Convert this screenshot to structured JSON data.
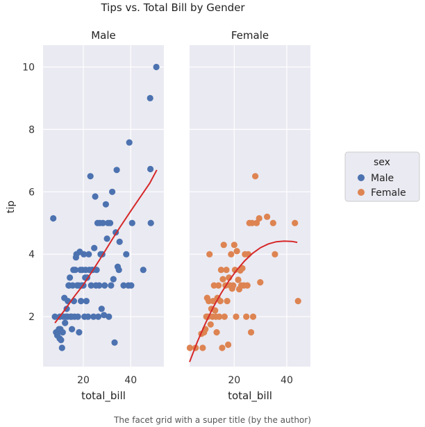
{
  "chart_data": {
    "type": "scatter",
    "title": "Tips vs. Total Bill by Gender",
    "ylabel": "tip",
    "ylim": [
      0.4,
      10.7
    ],
    "yticks": [
      2,
      4,
      6,
      8,
      10
    ],
    "grid": true,
    "legend": {
      "title": "sex",
      "placement": "right",
      "entries": [
        {
          "name": "Male",
          "color": "#4c72b0"
        },
        {
          "name": "Female",
          "color": "#dd8452"
        }
      ]
    },
    "trend_color": "#d62728",
    "facets": [
      {
        "title": "Male",
        "xlabel": "total_bill",
        "xlim": [
          3,
          54
        ],
        "xticks": [
          20,
          40
        ],
        "color": "#4c72b0",
        "points": [
          [
            7.3,
            5.15
          ],
          [
            8.0,
            2.0
          ],
          [
            8.5,
            1.5
          ],
          [
            9.0,
            1.4
          ],
          [
            9.3,
            1.5
          ],
          [
            9.7,
            1.6
          ],
          [
            10.0,
            1.3
          ],
          [
            10.1,
            2.0
          ],
          [
            10.3,
            1.6
          ],
          [
            10.6,
            1.25
          ],
          [
            11.0,
            1.0
          ],
          [
            11.3,
            1.5
          ],
          [
            11.6,
            2.0
          ],
          [
            12.0,
            2.6
          ],
          [
            12.3,
            1.8
          ],
          [
            12.7,
            2.0
          ],
          [
            13.0,
            2.25
          ],
          [
            13.3,
            2.0
          ],
          [
            13.5,
            2.5
          ],
          [
            13.8,
            3.0
          ],
          [
            14.0,
            3.0
          ],
          [
            14.3,
            3.25
          ],
          [
            14.6,
            2.0
          ],
          [
            15.0,
            2.0
          ],
          [
            15.2,
            1.6
          ],
          [
            15.5,
            3.0
          ],
          [
            15.8,
            3.5
          ],
          [
            16.0,
            2.5
          ],
          [
            16.3,
            2.0
          ],
          [
            16.6,
            3.5
          ],
          [
            16.9,
            3.9
          ],
          [
            17.1,
            4.0
          ],
          [
            17.4,
            3.0
          ],
          [
            17.7,
            2.0
          ],
          [
            18.0,
            3.0
          ],
          [
            18.2,
            1.5
          ],
          [
            18.5,
            4.08
          ],
          [
            18.8,
            3.5
          ],
          [
            19.0,
            2.5
          ],
          [
            19.3,
            3.0
          ],
          [
            19.6,
            3.5
          ],
          [
            20.0,
            3.0
          ],
          [
            20.2,
            4.0
          ],
          [
            20.5,
            2.0
          ],
          [
            20.8,
            3.25
          ],
          [
            21.0,
            3.5
          ],
          [
            21.3,
            2.5
          ],
          [
            21.6,
            3.25
          ],
          [
            22.0,
            2.0
          ],
          [
            22.3,
            4.0
          ],
          [
            22.6,
            3.5
          ],
          [
            23.0,
            6.5
          ],
          [
            23.3,
            3.0
          ],
          [
            23.7,
            3.5
          ],
          [
            24.0,
            3.5
          ],
          [
            24.3,
            2.0
          ],
          [
            24.6,
            4.2
          ],
          [
            25.0,
            5.85
          ],
          [
            25.3,
            3.0
          ],
          [
            25.6,
            3.5
          ],
          [
            26.0,
            5.0
          ],
          [
            26.3,
            2.0
          ],
          [
            26.7,
            3.0
          ],
          [
            27.0,
            5.0
          ],
          [
            27.3,
            4.0
          ],
          [
            27.7,
            2.25
          ],
          [
            28.0,
            4.0
          ],
          [
            28.3,
            5.0
          ],
          [
            28.7,
            2.05
          ],
          [
            29.0,
            3.0
          ],
          [
            29.5,
            5.6
          ],
          [
            30.0,
            4.5
          ],
          [
            30.4,
            5.0
          ],
          [
            30.8,
            2.0
          ],
          [
            31.3,
            5.0
          ],
          [
            31.7,
            3.0
          ],
          [
            32.2,
            6.0
          ],
          [
            32.7,
            3.2
          ],
          [
            33.2,
            1.17
          ],
          [
            33.7,
            4.7
          ],
          [
            34.1,
            6.7
          ],
          [
            34.5,
            3.6
          ],
          [
            35.0,
            3.5
          ],
          [
            35.3,
            4.4
          ],
          [
            37.0,
            3.0
          ],
          [
            38.1,
            4.0
          ],
          [
            39.0,
            3.0
          ],
          [
            39.4,
            7.58
          ],
          [
            40.2,
            3.0
          ],
          [
            40.6,
            5.0
          ],
          [
            45.3,
            3.5
          ],
          [
            48.2,
            9.0
          ],
          [
            48.3,
            6.73
          ],
          [
            48.5,
            5.0
          ],
          [
            50.8,
            10.0
          ]
        ],
        "trend": [
          [
            8,
            1.8
          ],
          [
            12,
            2.2
          ],
          [
            16,
            2.63
          ],
          [
            20,
            3.02
          ],
          [
            24,
            3.48
          ],
          [
            28,
            3.96
          ],
          [
            32,
            4.45
          ],
          [
            36,
            4.93
          ],
          [
            40,
            5.38
          ],
          [
            44,
            5.83
          ],
          [
            48,
            6.27
          ],
          [
            51,
            6.7
          ]
        ]
      },
      {
        "title": "Female",
        "xlabel": "total_bill",
        "xlim": [
          3,
          49
        ],
        "xticks": [
          20,
          40
        ],
        "color": "#dd8452",
        "points": [
          [
            3.1,
            1.0
          ],
          [
            5.3,
            1.0
          ],
          [
            7.5,
            1.45
          ],
          [
            8.0,
            1.0
          ],
          [
            8.5,
            1.5
          ],
          [
            9.0,
            1.6
          ],
          [
            9.4,
            2.0
          ],
          [
            9.7,
            2.6
          ],
          [
            10.0,
            2.0
          ],
          [
            10.3,
            2.5
          ],
          [
            10.6,
            4.0
          ],
          [
            11.0,
            1.75
          ],
          [
            11.3,
            2.25
          ],
          [
            11.7,
            2.0
          ],
          [
            12.0,
            2.5
          ],
          [
            12.3,
            3.0
          ],
          [
            12.7,
            2.2
          ],
          [
            13.0,
            2.0
          ],
          [
            13.3,
            1.5
          ],
          [
            13.6,
            2.6
          ],
          [
            14.0,
            3.0
          ],
          [
            14.3,
            2.0
          ],
          [
            14.7,
            2.5
          ],
          [
            15.0,
            3.5
          ],
          [
            15.4,
            1.0
          ],
          [
            15.7,
            3.2
          ],
          [
            16.0,
            4.3
          ],
          [
            16.3,
            2.0
          ],
          [
            16.7,
            3.0
          ],
          [
            17.0,
            3.5
          ],
          [
            17.3,
            2.5
          ],
          [
            17.7,
            1.1
          ],
          [
            18.0,
            3.25
          ],
          [
            18.4,
            3.0
          ],
          [
            18.8,
            4.0
          ],
          [
            19.2,
            2.9
          ],
          [
            19.6,
            3.0
          ],
          [
            20.0,
            4.3
          ],
          [
            20.3,
            3.5
          ],
          [
            20.7,
            2.0
          ],
          [
            21.0,
            4.1
          ],
          [
            21.5,
            3.18
          ],
          [
            21.9,
            2.88
          ],
          [
            22.3,
            3.48
          ],
          [
            22.7,
            3.0
          ],
          [
            23.1,
            3.55
          ],
          [
            23.7,
            3.0
          ],
          [
            24.1,
            4.0
          ],
          [
            24.6,
            2.0
          ],
          [
            25.0,
            3.0
          ],
          [
            25.3,
            4.0
          ],
          [
            25.8,
            5.0
          ],
          [
            26.4,
            1.5
          ],
          [
            26.8,
            5.0
          ],
          [
            27.2,
            2.0
          ],
          [
            28.0,
            6.5
          ],
          [
            28.5,
            5.0
          ],
          [
            29.5,
            5.15
          ],
          [
            29.9,
            3.1
          ],
          [
            32.5,
            5.2
          ],
          [
            34.8,
            5.0
          ],
          [
            35.5,
            4.0
          ],
          [
            43.1,
            5.0
          ],
          [
            44.3,
            2.5
          ]
        ],
        "trend": [
          [
            3,
            0.55
          ],
          [
            6,
            1.2
          ],
          [
            9,
            1.78
          ],
          [
            12,
            2.3
          ],
          [
            15,
            2.75
          ],
          [
            18,
            3.15
          ],
          [
            21,
            3.5
          ],
          [
            24,
            3.79
          ],
          [
            27,
            4.03
          ],
          [
            30,
            4.21
          ],
          [
            33,
            4.33
          ],
          [
            36,
            4.4
          ],
          [
            39,
            4.42
          ],
          [
            42,
            4.41
          ],
          [
            44,
            4.38
          ]
        ]
      }
    ]
  },
  "caption": "The facet grid with a super title (by the author)"
}
